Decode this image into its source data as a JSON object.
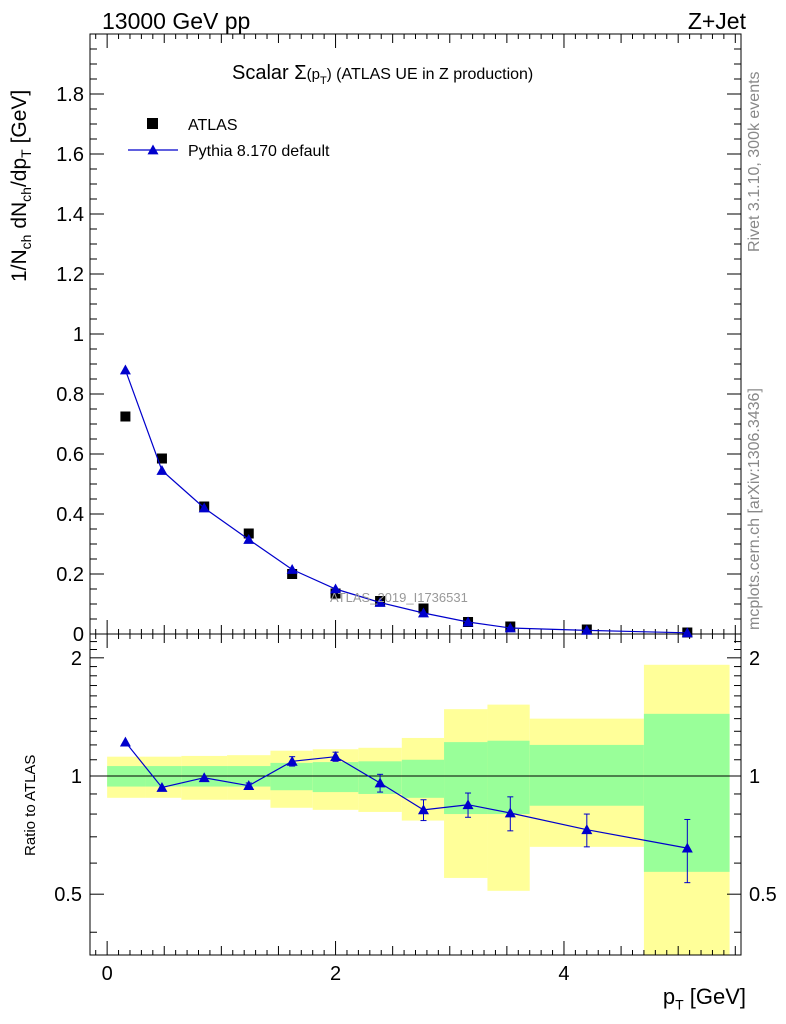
{
  "header": {
    "left": "13000 GeV pp",
    "right": "Z+Jet"
  },
  "side": {
    "rivet": "Rivet 3.1.10,  300k events",
    "mcplots": "mcplots.cern.ch [arXiv:1306.3436]"
  },
  "chart_data": {
    "type": "scatter",
    "title": "Scalar Σ(p_T) (ATLAS UE in Z production)",
    "title_parts": {
      "a": "Scalar ",
      "b": "Σ",
      "c": "(p",
      "d": "T",
      "e": ")",
      "f": " (ATLAS UE in Z production)"
    },
    "watermark": "ATLAS_2019_I1736531",
    "xlabel": "p_T [GeV]",
    "xlabel_parts": {
      "p": "p",
      "sub": "T",
      "unit": " [GeV]"
    },
    "ylabel": "1/N_ch dN_ch/dp_T [GeV]",
    "ylabel_parts": {
      "a": "1/N",
      "b": "ch",
      "c": " dN",
      "d": "ch",
      "e": "/dp",
      "f": "T",
      "g": " [GeV]"
    },
    "ratio_ylabel": "Ratio to ATLAS",
    "xlim": [
      -0.15,
      5.55
    ],
    "ylim": [
      0,
      2.0
    ],
    "ratio_ylim": [
      0.35,
      2.3
    ],
    "x_ticks": [
      "0",
      "2",
      "4"
    ],
    "y_ticks": [
      "0",
      "0.2",
      "0.4",
      "0.6",
      "0.8",
      "1",
      "1.2",
      "1.4",
      "1.6",
      "1.8"
    ],
    "ratio_ticks": [
      "0.5",
      "1",
      "2"
    ],
    "legend": {
      "position": "top-left",
      "entries": [
        "ATLAS",
        "Pythia 8.170 default"
      ]
    },
    "bins": [
      [
        0.0,
        0.34
      ],
      [
        0.34,
        0.65
      ],
      [
        0.65,
        1.05
      ],
      [
        1.05,
        1.43
      ],
      [
        1.43,
        1.8
      ],
      [
        1.8,
        2.2
      ],
      [
        2.2,
        2.58
      ],
      [
        2.58,
        2.95
      ],
      [
        2.95,
        3.33
      ],
      [
        3.33,
        3.7
      ],
      [
        3.7,
        4.7
      ],
      [
        4.7,
        5.45
      ]
    ],
    "series": [
      {
        "name": "ATLAS",
        "x": [
          0.16,
          0.48,
          0.85,
          1.24,
          1.62,
          2.0,
          2.39,
          2.77,
          3.16,
          3.53,
          4.2,
          5.08
        ],
        "y": [
          0.725,
          0.585,
          0.425,
          0.335,
          0.2,
          0.135,
          0.11,
          0.085,
          0.04,
          0.025,
          0.015,
          0.005
        ]
      },
      {
        "name": "Pythia 8.170 default",
        "x": [
          0.16,
          0.48,
          0.85,
          1.24,
          1.62,
          2.0,
          2.39,
          2.77,
          3.16,
          3.53,
          4.2,
          5.08
        ],
        "y": [
          0.88,
          0.545,
          0.42,
          0.315,
          0.215,
          0.15,
          0.105,
          0.07,
          0.04,
          0.02,
          0.012,
          0.004
        ],
        "ratio": [
          1.22,
          0.935,
          0.99,
          0.945,
          1.09,
          1.12,
          0.96,
          0.82,
          0.845,
          0.805,
          0.73,
          0.655
        ],
        "ratio_err": [
          0.01,
          0.01,
          0.01,
          0.015,
          0.03,
          0.03,
          0.05,
          0.05,
          0.06,
          0.08,
          0.07,
          0.12
        ]
      }
    ],
    "ratio_band_inner": [
      [
        0.94,
        1.06
      ],
      [
        0.94,
        1.06
      ],
      [
        0.94,
        1.06
      ],
      [
        0.94,
        1.06
      ],
      [
        0.92,
        1.08
      ],
      [
        0.91,
        1.085
      ],
      [
        0.9,
        1.09
      ],
      [
        0.88,
        1.1
      ],
      [
        0.8,
        1.22
      ],
      [
        0.8,
        1.23
      ],
      [
        0.84,
        1.2
      ],
      [
        0.57,
        1.44
      ]
    ],
    "ratio_band_outer": [
      [
        0.88,
        1.12
      ],
      [
        0.88,
        1.12
      ],
      [
        0.87,
        1.125
      ],
      [
        0.87,
        1.13
      ],
      [
        0.83,
        1.16
      ],
      [
        0.82,
        1.17
      ],
      [
        0.81,
        1.18
      ],
      [
        0.77,
        1.25
      ],
      [
        0.55,
        1.48
      ],
      [
        0.51,
        1.52
      ],
      [
        0.66,
        1.4
      ],
      [
        0.35,
        1.92
      ]
    ]
  }
}
